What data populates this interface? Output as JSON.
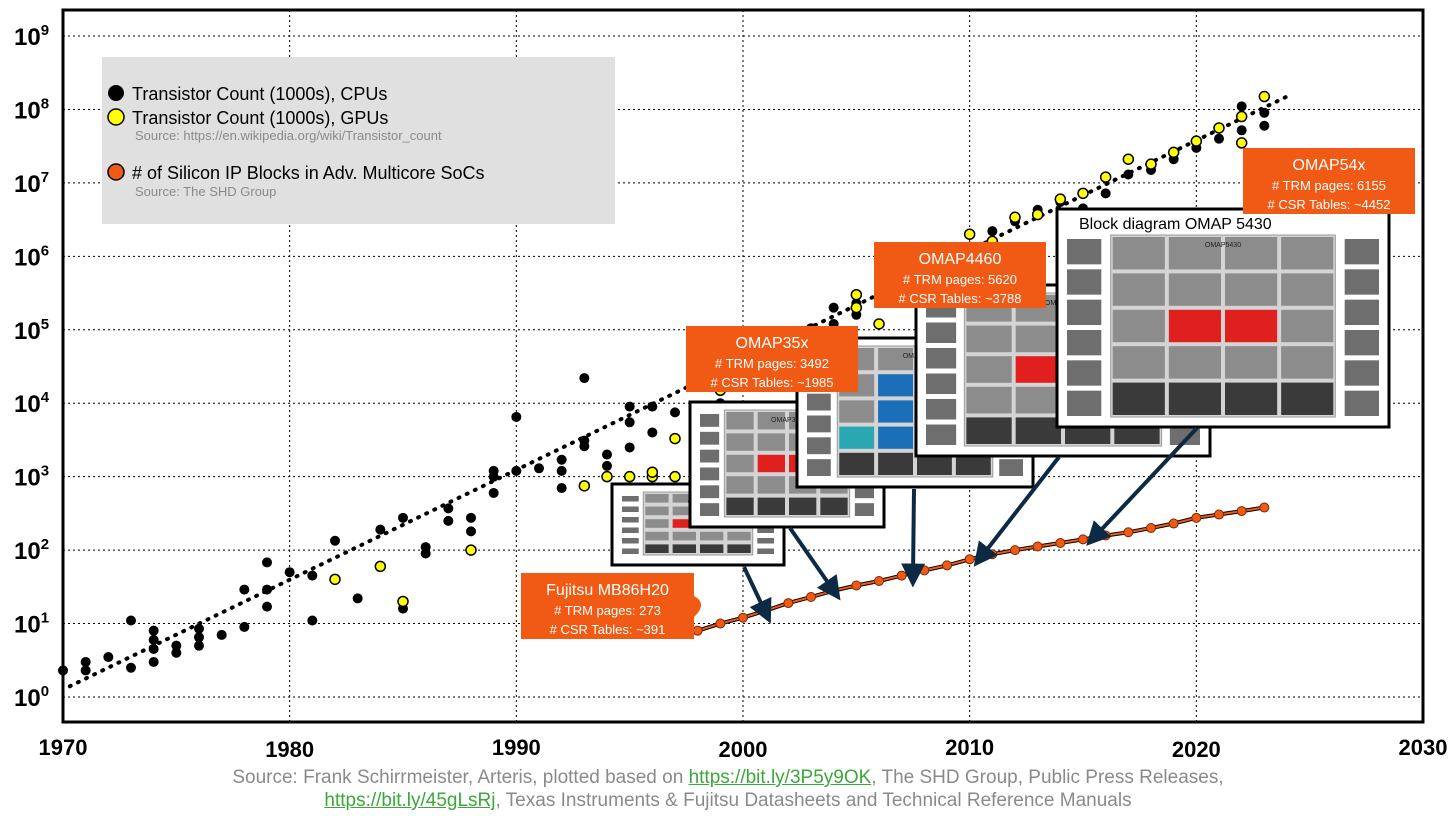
{
  "chart_data": {
    "type": "scatter",
    "x_range": [
      1970,
      2030
    ],
    "y_scale": "log",
    "y_range_exponent": [
      0,
      9
    ],
    "x_ticks": [
      "1970",
      "1980",
      "1990",
      "2000",
      "2010",
      "2020",
      "2030"
    ],
    "y_ticks": [
      {
        "base": "10",
        "exp": "0"
      },
      {
        "base": "10",
        "exp": "1"
      },
      {
        "base": "10",
        "exp": "2"
      },
      {
        "base": "10",
        "exp": "3"
      },
      {
        "base": "10",
        "exp": "4"
      },
      {
        "base": "10",
        "exp": "5"
      },
      {
        "base": "10",
        "exp": "6"
      },
      {
        "base": "10",
        "exp": "7"
      },
      {
        "base": "10",
        "exp": "8"
      },
      {
        "base": "10",
        "exp": "9"
      }
    ],
    "grid": true,
    "legend_position": "top-left",
    "legend": {
      "items": [
        {
          "label": "Transistor Count (1000s), CPUs",
          "color": "#000000"
        },
        {
          "label": "Transistor Count (1000s), GPUs",
          "color": "#ffff00"
        },
        {
          "label": "# of Silicon IP Blocks in Adv. Multicore SoCs",
          "color": "#f05a14"
        }
      ],
      "sources": [
        "Source: https://en.wikipedia.org/wiki/Transistor_count",
        "Source: The SHD Group"
      ]
    },
    "series": [
      {
        "name": "Transistor Count (1000s), CPUs",
        "color": "#000000",
        "points": [
          [
            1970,
            2.3
          ],
          [
            1971,
            2.3
          ],
          [
            1971,
            3
          ],
          [
            1972,
            3.5
          ],
          [
            1973,
            11
          ],
          [
            1973,
            2.5
          ],
          [
            1974,
            3
          ],
          [
            1974,
            4.5
          ],
          [
            1974,
            6
          ],
          [
            1974,
            8
          ],
          [
            1975,
            4
          ],
          [
            1975,
            5
          ],
          [
            1976,
            5
          ],
          [
            1976,
            6.5
          ],
          [
            1976,
            8.5
          ],
          [
            1977,
            7
          ],
          [
            1978,
            9
          ],
          [
            1978,
            29
          ],
          [
            1979,
            17
          ],
          [
            1979,
            29
          ],
          [
            1979,
            68
          ],
          [
            1980,
            50
          ],
          [
            1981,
            45
          ],
          [
            1981,
            11
          ],
          [
            1982,
            134
          ],
          [
            1983,
            22
          ],
          [
            1984,
            190
          ],
          [
            1985,
            16
          ],
          [
            1985,
            275
          ],
          [
            1986,
            90
          ],
          [
            1986,
            110
          ],
          [
            1987,
            250
          ],
          [
            1987,
            370
          ],
          [
            1988,
            180
          ],
          [
            1988,
            275
          ],
          [
            1989,
            600
          ],
          [
            1989,
            1000
          ],
          [
            1989,
            1200
          ],
          [
            1990,
            1200
          ],
          [
            1990,
            6500
          ],
          [
            1991,
            1300
          ],
          [
            1992,
            700
          ],
          [
            1992,
            1200
          ],
          [
            1992,
            1700
          ],
          [
            1993,
            3100
          ],
          [
            1993,
            2600
          ],
          [
            1993,
            22000
          ],
          [
            1994,
            1400
          ],
          [
            1994,
            2000
          ],
          [
            1995,
            2500
          ],
          [
            1995,
            5500
          ],
          [
            1995,
            9000
          ],
          [
            1996,
            4000
          ],
          [
            1996,
            9000
          ],
          [
            1997,
            3300
          ],
          [
            1997,
            7500
          ],
          [
            1998,
            8000
          ],
          [
            1999,
            10000
          ],
          [
            1999,
            22000
          ],
          [
            2000,
            28000
          ],
          [
            2000,
            42000
          ],
          [
            2001,
            40000
          ],
          [
            2002,
            55000
          ],
          [
            2003,
            105000
          ],
          [
            2004,
            120000
          ],
          [
            2004,
            200000
          ],
          [
            2005,
            230000
          ],
          [
            2005,
            160000
          ],
          [
            2006,
            290000
          ],
          [
            2007,
            400000
          ],
          [
            2008,
            820000
          ],
          [
            2009,
            1000000
          ],
          [
            2010,
            1200000
          ],
          [
            2011,
            2200000
          ],
          [
            2012,
            3000000
          ],
          [
            2013,
            4300000
          ],
          [
            2014,
            5500000
          ],
          [
            2015,
            4500000
          ],
          [
            2016,
            7200000
          ],
          [
            2017,
            13000000
          ],
          [
            2018,
            15000000
          ],
          [
            2019,
            21000000
          ],
          [
            2020,
            30000000
          ],
          [
            2021,
            40000000
          ],
          [
            2022,
            52000000
          ],
          [
            2022,
            110000000
          ],
          [
            2023,
            60000000
          ],
          [
            2023,
            90000000
          ]
        ]
      },
      {
        "name": "Transistor Count (1000s), GPUs",
        "color": "#ffff00",
        "points": [
          [
            1982,
            40
          ],
          [
            1984,
            60
          ],
          [
            1985,
            20
          ],
          [
            1988,
            100
          ],
          [
            1993,
            750
          ],
          [
            1994,
            1000
          ],
          [
            1995,
            1000
          ],
          [
            1996,
            1000
          ],
          [
            1996,
            1150
          ],
          [
            1997,
            1000
          ],
          [
            1997,
            3300
          ],
          [
            1998,
            4000
          ],
          [
            1999,
            15000
          ],
          [
            2000,
            25000
          ],
          [
            2001,
            35000
          ],
          [
            2003,
            50000
          ],
          [
            2005,
            200000
          ],
          [
            2005,
            300000
          ],
          [
            2006,
            120000
          ],
          [
            2007,
            300000
          ],
          [
            2008,
            550000
          ],
          [
            2009,
            880000
          ],
          [
            2010,
            2000000
          ],
          [
            2011,
            1600000
          ],
          [
            2012,
            3400000
          ],
          [
            2013,
            3700000
          ],
          [
            2014,
            6000000
          ],
          [
            2015,
            7200000
          ],
          [
            2016,
            12000000
          ],
          [
            2017,
            21000000
          ],
          [
            2018,
            18000000
          ],
          [
            2019,
            26000000
          ],
          [
            2020,
            37000000
          ],
          [
            2021,
            56000000
          ],
          [
            2022,
            35000000
          ],
          [
            2022,
            80000000
          ],
          [
            2023,
            150000000
          ]
        ]
      },
      {
        "name": "# of Silicon IP Blocks in Adv. Multicore SoCs",
        "color": "#f05a14",
        "points": [
          [
            1998,
            8
          ],
          [
            1999,
            10
          ],
          [
            2000,
            12
          ],
          [
            2001,
            15
          ],
          [
            2002,
            19
          ],
          [
            2003,
            23
          ],
          [
            2004,
            28
          ],
          [
            2005,
            33
          ],
          [
            2006,
            38
          ],
          [
            2007,
            45
          ],
          [
            2008,
            53
          ],
          [
            2009,
            62
          ],
          [
            2010,
            75
          ],
          [
            2011,
            88
          ],
          [
            2012,
            100
          ],
          [
            2013,
            112
          ],
          [
            2014,
            125
          ],
          [
            2015,
            140
          ],
          [
            2016,
            158
          ],
          [
            2017,
            175
          ],
          [
            2018,
            200
          ],
          [
            2019,
            230
          ],
          [
            2020,
            275
          ],
          [
            2021,
            305
          ],
          [
            2022,
            340
          ],
          [
            2023,
            380
          ]
        ]
      }
    ],
    "trend_lines": [
      {
        "series": "Transistor Count (1000s), CPUs",
        "style": "dotted",
        "from": [
          1970.3,
          1.4
        ],
        "to": [
          2024,
          150000000
        ]
      }
    ],
    "callouts": [
      {
        "title": "Fujitsu MB86H20",
        "lines": [
          "# TRM pages: 273",
          "# CSR Tables: ~391"
        ]
      },
      {
        "title": "OMAP35x",
        "lines": [
          "# TRM pages: 3492",
          "# CSR Tables: ~1985"
        ]
      },
      {
        "title": "OMAP4460",
        "lines": [
          "# TRM pages: 5620",
          "# CSR Tables: ~3788"
        ]
      },
      {
        "title": "OMAP54x",
        "lines": [
          "# TRM pages: 6155",
          "# CSR Tables: ~4452"
        ]
      }
    ],
    "thumbnails": [
      {
        "caption": "",
        "chip_label": "OMAP"
      },
      {
        "caption": "",
        "chip_label": "OMAP35x"
      },
      {
        "caption": "",
        "chip_label": "OMAP4"
      },
      {
        "caption": "",
        "chip_label": "OMAP4470"
      },
      {
        "caption": "Block diagram OMAP 5430",
        "chip_label": "OMAP5430"
      }
    ],
    "arrows": [
      {
        "from_thumbnail": 0,
        "to": [
          2001,
          14
        ]
      },
      {
        "from_thumbnail": 1,
        "to": [
          2004,
          28
        ]
      },
      {
        "from_thumbnail": 2,
        "to": [
          2007.5,
          45
        ]
      },
      {
        "from_thumbnail": 3,
        "to": [
          2010.5,
          80
        ]
      },
      {
        "from_thumbnail": 4,
        "to": [
          2015.5,
          150
        ]
      }
    ]
  },
  "footer": {
    "source_prefix": "Source: Frank Schirrmeister, Arteris, plotted based on ",
    "link1": "https://bit.ly/3P5y9OK",
    "source_mid": ", The SHD Group, Public Press Releases,",
    "link2": "https://bit.ly/45gLsRj",
    "source_suffix": ", Texas Instruments & Fujitsu Datasheets and Technical Reference Manuals"
  }
}
